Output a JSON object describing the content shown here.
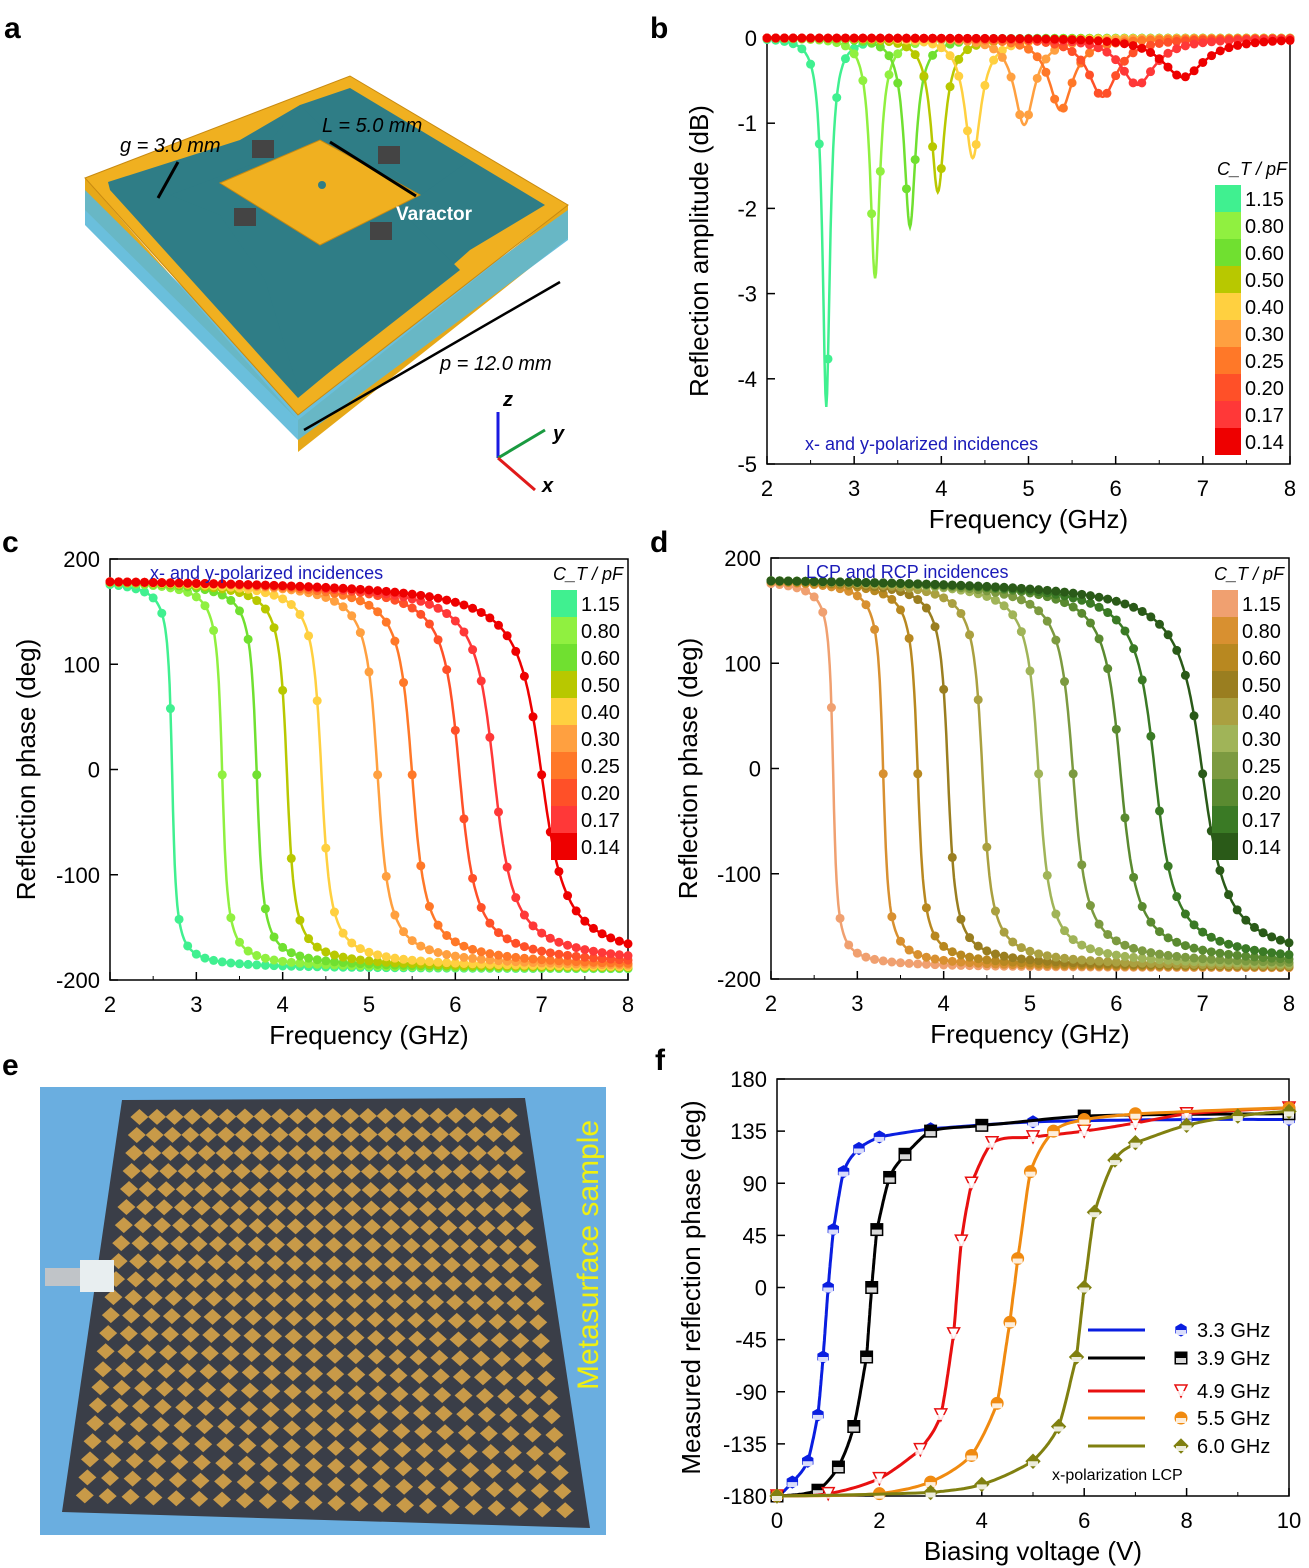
{
  "panels": {
    "a": {
      "label": "a",
      "g_label": "g = 3.0 mm",
      "L_label": "L = 5.0 mm",
      "varactor_label": "Varactor",
      "p_label": "p = 12.0 mm",
      "axis_z": "z",
      "axis_y": "y",
      "axis_x": "x"
    },
    "e": {
      "label": "e",
      "sample_label": "Metasurface sample"
    }
  },
  "chart_data": [
    {
      "panel": "b",
      "type": "line",
      "xlabel": "Frequency (GHz)",
      "ylabel": "Reflection amplitude (dB)",
      "xlim": [
        2,
        8
      ],
      "ylim": [
        -5,
        0
      ],
      "xticks": [
        "2",
        "3",
        "4",
        "5",
        "6",
        "7",
        "8"
      ],
      "yticks": [
        "0",
        "-1",
        "-2",
        "-3",
        "-4",
        "-5"
      ],
      "annotation": "x- and y-polarized incidences",
      "colorbar_title": "C_T / pF",
      "series": [
        {
          "name": "1.15",
          "color": "#40f090",
          "resonance_GHz": 2.68,
          "min_dB": -4.33
        },
        {
          "name": "0.80",
          "color": "#90f040",
          "resonance_GHz": 3.24,
          "min_dB": -2.82
        },
        {
          "name": "0.60",
          "color": "#70e030",
          "resonance_GHz": 3.64,
          "min_dB": -2.22
        },
        {
          "name": "0.50",
          "color": "#b8c800",
          "resonance_GHz": 3.96,
          "min_dB": -1.81
        },
        {
          "name": "0.40",
          "color": "#ffd040",
          "resonance_GHz": 4.36,
          "min_dB": -1.41
        },
        {
          "name": "0.30",
          "color": "#ffa040",
          "resonance_GHz": 4.95,
          "min_dB": -1.02
        },
        {
          "name": "0.25",
          "color": "#ff7828",
          "resonance_GHz": 5.37,
          "min_dB": -0.85
        },
        {
          "name": "0.20",
          "color": "#ff5028",
          "resonance_GHz": 5.85,
          "min_dB": -0.69
        },
        {
          "name": "0.17",
          "color": "#ff3838",
          "resonance_GHz": 6.25,
          "min_dB": -0.55
        },
        {
          "name": "0.14",
          "color": "#ee0000",
          "resonance_GHz": 6.77,
          "min_dB": -0.46
        }
      ]
    },
    {
      "panel": "c",
      "type": "line",
      "xlabel": "Frequency (GHz)",
      "ylabel": "Reflection phase (deg)",
      "xlim": [
        2,
        8
      ],
      "ylim": [
        -200,
        200
      ],
      "xticks": [
        "2",
        "3",
        "4",
        "5",
        "6",
        "7",
        "8"
      ],
      "yticks": [
        "200",
        "100",
        "0",
        "-100",
        "-200"
      ],
      "annotation": "x- and y-polarized incidences",
      "colorbar_title": "C_T / pF",
      "series": [
        {
          "name": "1.15",
          "color": "#40f090",
          "zero_crossing_GHz": 2.72
        },
        {
          "name": "0.80",
          "color": "#90f040",
          "zero_crossing_GHz": 3.3
        },
        {
          "name": "0.60",
          "color": "#70e030",
          "zero_crossing_GHz": 3.7
        },
        {
          "name": "0.50",
          "color": "#b8c800",
          "zero_crossing_GHz": 4.05
        },
        {
          "name": "0.40",
          "color": "#ffd040",
          "zero_crossing_GHz": 4.45
        },
        {
          "name": "0.30",
          "color": "#ffa040",
          "zero_crossing_GHz": 5.1
        },
        {
          "name": "0.25",
          "color": "#ff7828",
          "zero_crossing_GHz": 5.5
        },
        {
          "name": "0.20",
          "color": "#ff5028",
          "zero_crossing_GHz": 6.05
        },
        {
          "name": "0.17",
          "color": "#ff3838",
          "zero_crossing_GHz": 6.45
        },
        {
          "name": "0.14",
          "color": "#ee0000",
          "zero_crossing_GHz": 7.0
        }
      ]
    },
    {
      "panel": "d",
      "type": "line",
      "xlabel": "Frequency (GHz)",
      "ylabel": "Reflection phase (deg)",
      "xlim": [
        2,
        8
      ],
      "ylim": [
        -200,
        200
      ],
      "xticks": [
        "2",
        "3",
        "4",
        "5",
        "6",
        "7",
        "8"
      ],
      "yticks": [
        "200",
        "100",
        "0",
        "-100",
        "-200"
      ],
      "annotation": "LCP and RCP incidences",
      "colorbar_title": "C_T / pF",
      "series": [
        {
          "name": "1.15",
          "color": "#f0a070",
          "zero_crossing_GHz": 2.72
        },
        {
          "name": "0.80",
          "color": "#d89030",
          "zero_crossing_GHz": 3.3
        },
        {
          "name": "0.60",
          "color": "#b88820",
          "zero_crossing_GHz": 3.7
        },
        {
          "name": "0.50",
          "color": "#9a7e20",
          "zero_crossing_GHz": 4.05
        },
        {
          "name": "0.40",
          "color": "#aaa040",
          "zero_crossing_GHz": 4.45
        },
        {
          "name": "0.30",
          "color": "#a0b458",
          "zero_crossing_GHz": 5.1
        },
        {
          "name": "0.25",
          "color": "#7c9a40",
          "zero_crossing_GHz": 5.5
        },
        {
          "name": "0.20",
          "color": "#5a8a30",
          "zero_crossing_GHz": 6.05
        },
        {
          "name": "0.17",
          "color": "#3a7a25",
          "zero_crossing_GHz": 6.45
        },
        {
          "name": "0.14",
          "color": "#2a5a18",
          "zero_crossing_GHz": 7.0
        }
      ]
    },
    {
      "panel": "f",
      "type": "line",
      "xlabel": "Biasing voltage (V)",
      "ylabel": "Measured reflection phase (deg)",
      "xlim": [
        0,
        10
      ],
      "ylim": [
        -180,
        180
      ],
      "xticks": [
        "0",
        "2",
        "4",
        "6",
        "8",
        "10"
      ],
      "yticks": [
        "180",
        "135",
        "90",
        "45",
        "0",
        "-45",
        "-90",
        "-135",
        "-180"
      ],
      "annotation": "x-polarization  LCP",
      "legend": "bottom-right",
      "series": [
        {
          "name": "3.3 GHz",
          "color": "#0a1ee0",
          "marker": "hexagon",
          "points": [
            [
              0,
              -180
            ],
            [
              0.3,
              -168
            ],
            [
              0.6,
              -150
            ],
            [
              0.8,
              -110
            ],
            [
              0.9,
              -60
            ],
            [
              1.0,
              0
            ],
            [
              1.1,
              50
            ],
            [
              1.3,
              100
            ],
            [
              1.6,
              120
            ],
            [
              2,
              130
            ],
            [
              3,
              137
            ],
            [
              5,
              143
            ],
            [
              8,
              145
            ],
            [
              10,
              145
            ]
          ]
        },
        {
          "name": "3.9 GHz",
          "color": "#000000",
          "marker": "square",
          "points": [
            [
              0,
              -180
            ],
            [
              0.8,
              -175
            ],
            [
              1.2,
              -155
            ],
            [
              1.5,
              -120
            ],
            [
              1.75,
              -60
            ],
            [
              1.85,
              0
            ],
            [
              1.95,
              50
            ],
            [
              2.2,
              95
            ],
            [
              2.5,
              115
            ],
            [
              3,
              135
            ],
            [
              4,
              140
            ],
            [
              6,
              148
            ],
            [
              10,
              150
            ]
          ]
        },
        {
          "name": "4.9 GHz",
          "color": "#e81010",
          "marker": "triangle-down",
          "points": [
            [
              0,
              -180
            ],
            [
              1,
              -178
            ],
            [
              2,
              -165
            ],
            [
              2.8,
              -140
            ],
            [
              3.2,
              -110
            ],
            [
              3.45,
              -40
            ],
            [
              3.6,
              40
            ],
            [
              3.8,
              90
            ],
            [
              4.2,
              125
            ],
            [
              5,
              130
            ],
            [
              6,
              135
            ],
            [
              7,
              142
            ],
            [
              8,
              150
            ],
            [
              10,
              155
            ]
          ]
        },
        {
          "name": "5.5 GHz",
          "color": "#f08a10",
          "marker": "circle",
          "points": [
            [
              0,
              -180
            ],
            [
              2,
              -178
            ],
            [
              3,
              -168
            ],
            [
              3.8,
              -145
            ],
            [
              4.3,
              -100
            ],
            [
              4.55,
              -30
            ],
            [
              4.7,
              25
            ],
            [
              4.95,
              100
            ],
            [
              5.4,
              135
            ],
            [
              6,
              145
            ],
            [
              7,
              150
            ],
            [
              10,
              155
            ]
          ]
        },
        {
          "name": "6.0 GHz",
          "color": "#808010",
          "marker": "diamond",
          "points": [
            [
              0,
              -180
            ],
            [
              3,
              -177
            ],
            [
              4,
              -170
            ],
            [
              5,
              -150
            ],
            [
              5.5,
              -120
            ],
            [
              5.85,
              -60
            ],
            [
              6.0,
              0
            ],
            [
              6.2,
              65
            ],
            [
              6.6,
              110
            ],
            [
              7,
              125
            ],
            [
              8,
              140
            ],
            [
              9,
              148
            ],
            [
              10,
              152
            ]
          ]
        }
      ]
    }
  ]
}
